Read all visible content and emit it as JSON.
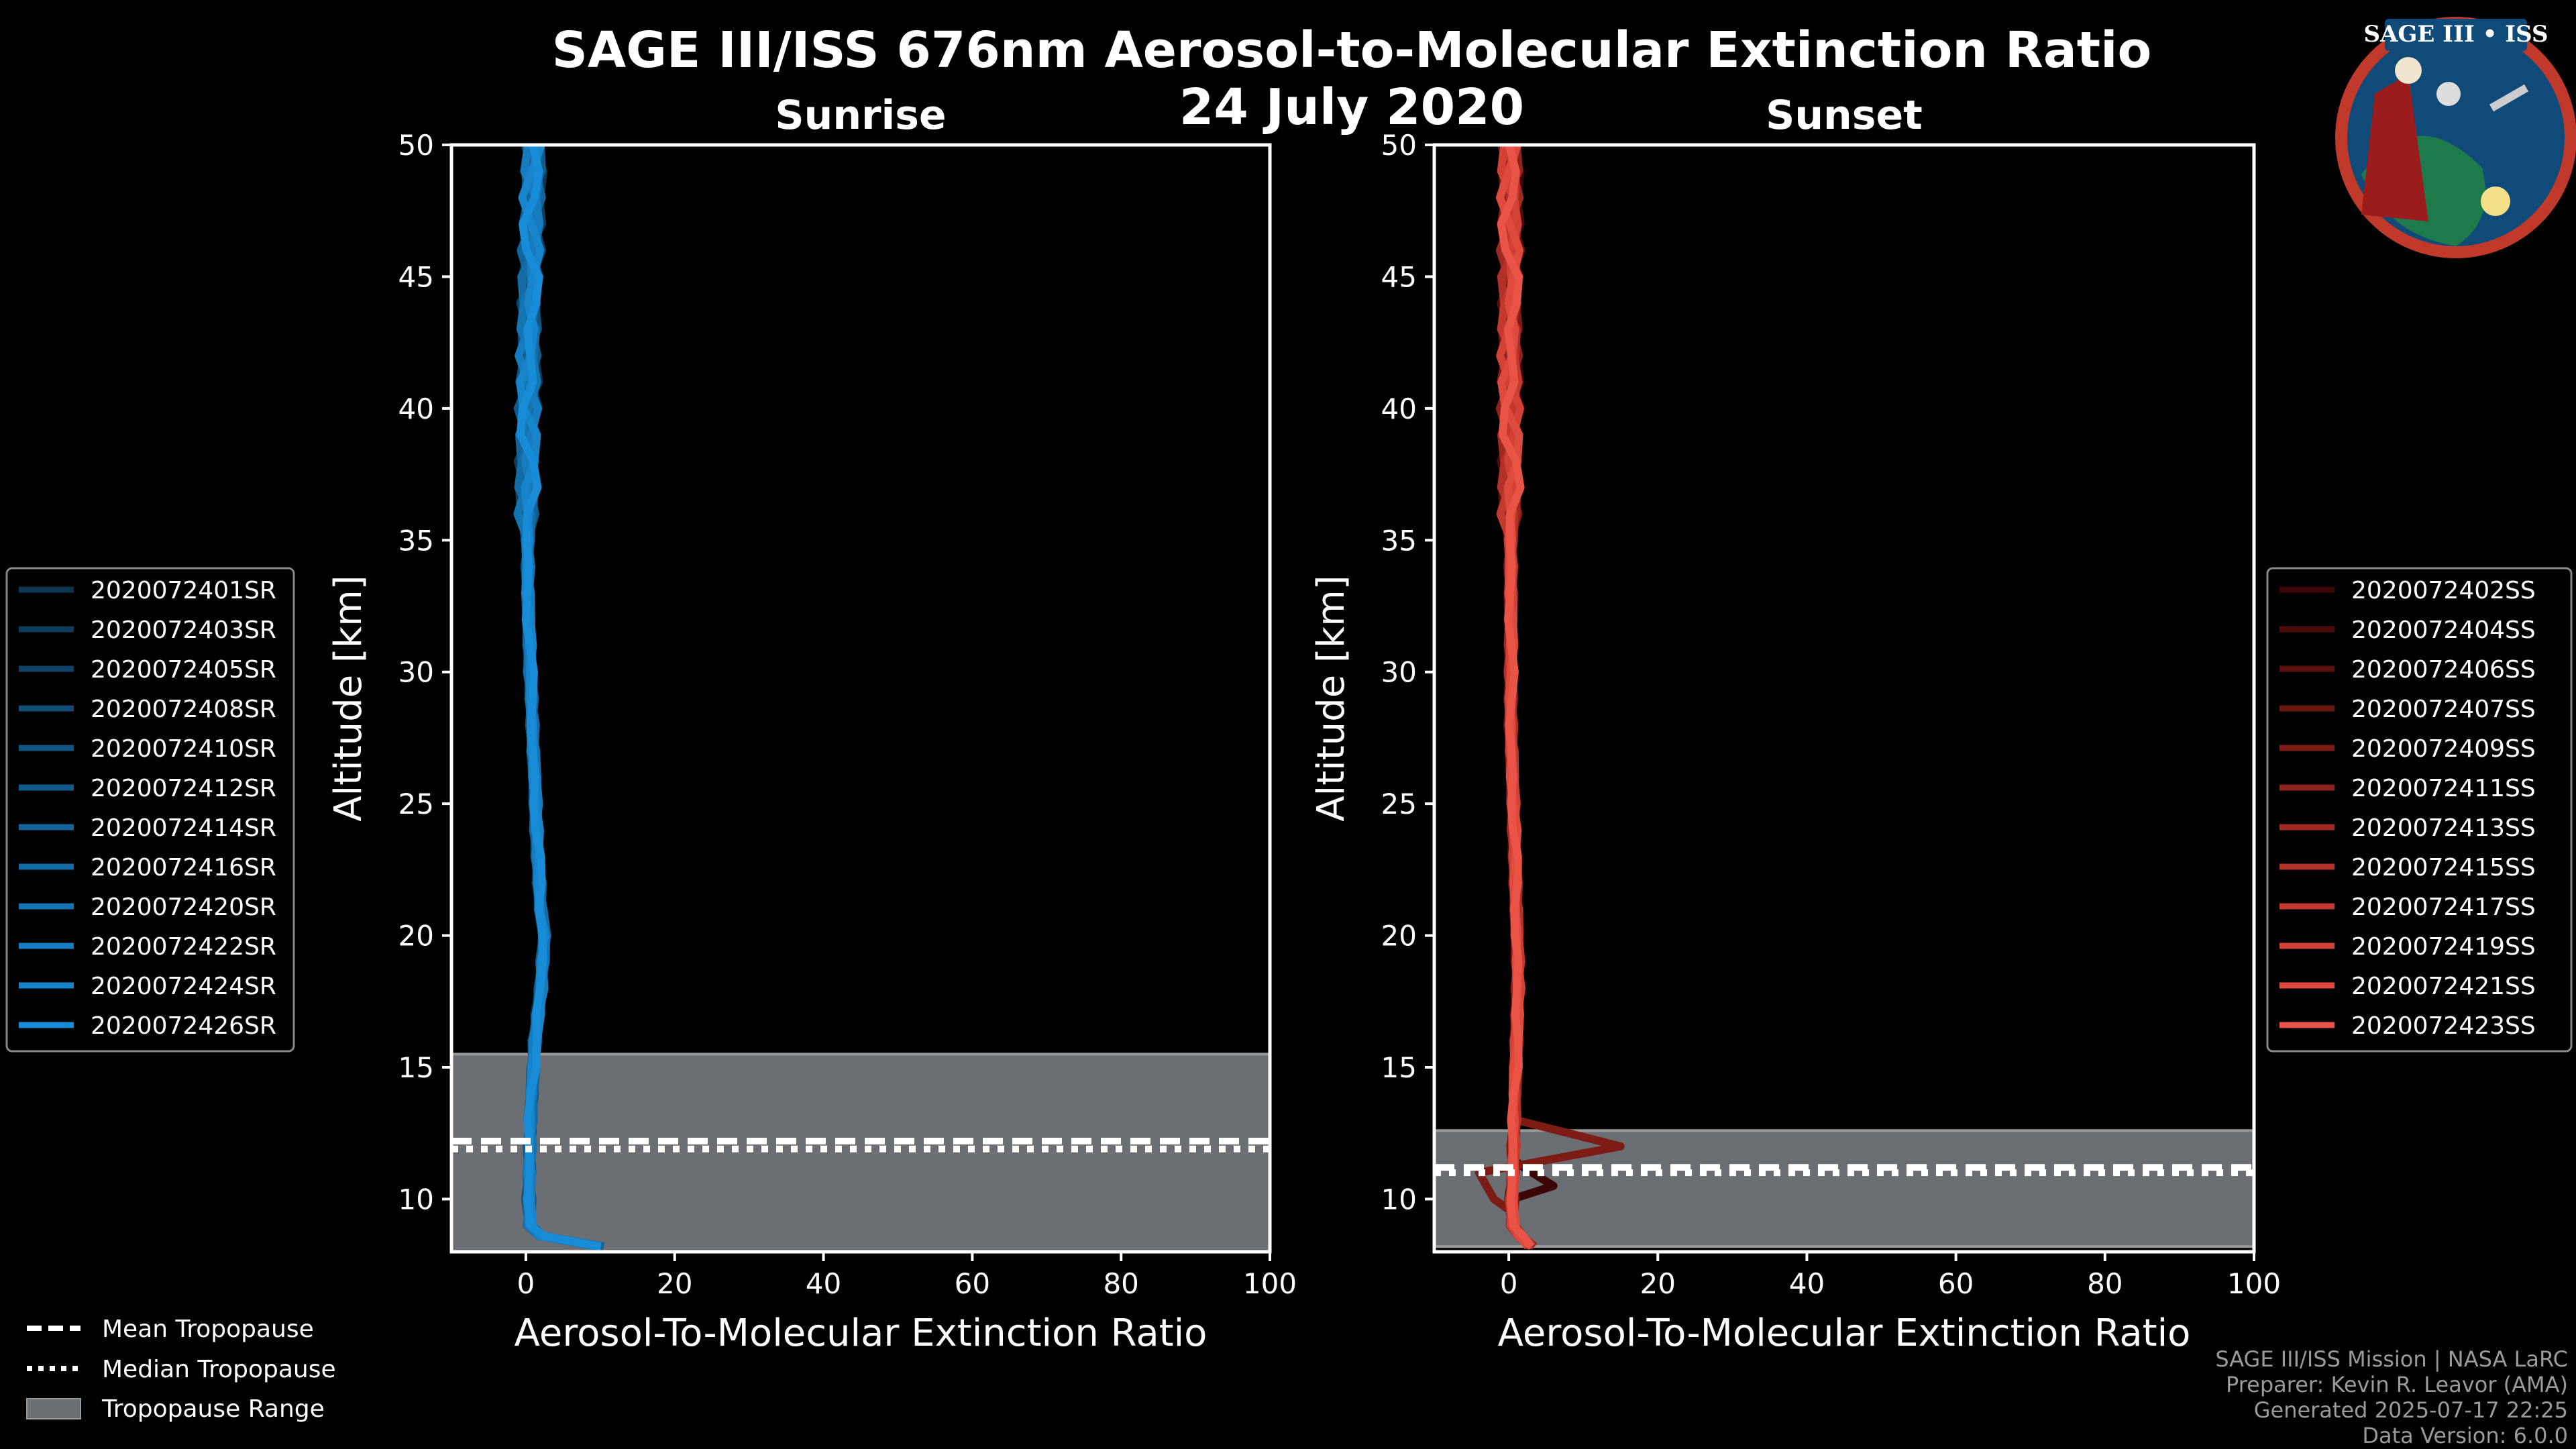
{
  "title": "SAGE III/ISS 676nm Aerosol-to-Molecular Extinction Ratio",
  "subtitle": "24 July 2020",
  "logo_text": "SAGE III • ISS",
  "chart_data": [
    {
      "type": "line",
      "title": "Sunrise",
      "xlabel": "Aerosol-To-Molecular Extinction Ratio",
      "ylabel": "Altitude [km]",
      "xlim": [
        -10,
        100
      ],
      "ylim": [
        8,
        50
      ],
      "xticks": [
        "0",
        "20",
        "40",
        "60",
        "80",
        "100"
      ],
      "yticks": [
        "10",
        "15",
        "20",
        "25",
        "30",
        "35",
        "40",
        "45",
        "50"
      ],
      "xtick_values": [
        0,
        20,
        40,
        60,
        80,
        100
      ],
      "ytick_values": [
        10,
        15,
        20,
        25,
        30,
        35,
        40,
        45,
        50
      ],
      "tropopause": {
        "min": 8,
        "max": 15.5,
        "mean": 12.2,
        "median": 11.9
      },
      "altitude": [
        8.2,
        8.6,
        9,
        10,
        11,
        12,
        13,
        14,
        15,
        16,
        17,
        18,
        19,
        20,
        21,
        22,
        23,
        24,
        25,
        26,
        27,
        28,
        29,
        30,
        31,
        32,
        33,
        34,
        35,
        36,
        37,
        38,
        39,
        40,
        41,
        42,
        43,
        44,
        45,
        46,
        47,
        48,
        49,
        50
      ],
      "base_profile": [
        10,
        2,
        0.5,
        0.4,
        0.4,
        0.5,
        0.6,
        0.8,
        1.0,
        1.2,
        1.6,
        2.0,
        2.2,
        2.5,
        2.0,
        1.8,
        1.6,
        1.4,
        1.3,
        1.2,
        1.0,
        0.9,
        0.8,
        0.6,
        0.5,
        0.4,
        0.3,
        0.3,
        0.3,
        0.3,
        0.3,
        0.3,
        0.4,
        0.4,
        0.5,
        0.5,
        0.6,
        0.6,
        0.7,
        0.8,
        0.9,
        1.0,
        1.1,
        1.2
      ],
      "legend_position": "left",
      "series": [
        {
          "name": "2020072401SR",
          "color": "#0d3550"
        },
        {
          "name": "2020072403SR",
          "color": "#0e3c5c"
        },
        {
          "name": "2020072405SR",
          "color": "#0f4468"
        },
        {
          "name": "2020072408SR",
          "color": "#104c75"
        },
        {
          "name": "2020072410SR",
          "color": "#115481"
        },
        {
          "name": "2020072412SR",
          "color": "#125c8d"
        },
        {
          "name": "2020072414SR",
          "color": "#13649a"
        },
        {
          "name": "2020072416SR",
          "color": "#146ca6"
        },
        {
          "name": "2020072420SR",
          "color": "#1574b2"
        },
        {
          "name": "2020072422SR",
          "color": "#167cbf"
        },
        {
          "name": "2020072424SR",
          "color": "#1784cb"
        },
        {
          "name": "2020072426SR",
          "color": "#188cd7"
        }
      ]
    },
    {
      "type": "line",
      "title": "Sunset",
      "xlabel": "Aerosol-To-Molecular Extinction Ratio",
      "ylabel": "Altitude [km]",
      "xlim": [
        -10,
        100
      ],
      "ylim": [
        8,
        50
      ],
      "xticks": [
        "0",
        "20",
        "40",
        "60",
        "80",
        "100"
      ],
      "yticks": [
        "10",
        "15",
        "20",
        "25",
        "30",
        "35",
        "40",
        "45",
        "50"
      ],
      "xtick_values": [
        0,
        20,
        40,
        60,
        80,
        100
      ],
      "ytick_values": [
        10,
        15,
        20,
        25,
        30,
        35,
        40,
        45,
        50
      ],
      "tropopause": {
        "min": 8.2,
        "max": 12.6,
        "mean": 11.2,
        "median": 11.0
      },
      "altitude": [
        8.2,
        8.6,
        9,
        10,
        11,
        12,
        13,
        14,
        15,
        16,
        17,
        18,
        19,
        20,
        21,
        22,
        23,
        24,
        25,
        26,
        27,
        28,
        29,
        30,
        31,
        32,
        33,
        34,
        35,
        36,
        37,
        38,
        39,
        40,
        41,
        42,
        43,
        44,
        45,
        46,
        47,
        48,
        49,
        50
      ],
      "base_profile": [
        3,
        1.5,
        0.5,
        0.4,
        0.5,
        0.6,
        0.7,
        0.8,
        0.9,
        1.0,
        1.1,
        1.2,
        1.2,
        1.1,
        1.0,
        0.9,
        0.8,
        0.7,
        0.6,
        0.5,
        0.4,
        0.3,
        0.3,
        0.3,
        0.3,
        0.3,
        0.3,
        0.3,
        0.3,
        0.3,
        0.3,
        0.3,
        0.3,
        0.3,
        0.3,
        0.3,
        0.3,
        0.3,
        0.3,
        0.3,
        0.3,
        0.3,
        0.3,
        0.3
      ],
      "excursions": [
        {
          "series": "2020072409SS",
          "altitude": [
            10,
            11,
            12,
            12.5,
            13
          ],
          "values": [
            -2,
            -4,
            15,
            8,
            1
          ]
        },
        {
          "series": "2020072402SS",
          "altitude": [
            10.5,
            11.2
          ],
          "values": [
            6,
            2
          ]
        }
      ],
      "legend_position": "right",
      "series": [
        {
          "name": "2020072402SS",
          "color": "#3a0606"
        },
        {
          "name": "2020072404SS",
          "color": "#4a0b0a"
        },
        {
          "name": "2020072406SS",
          "color": "#5b100e"
        },
        {
          "name": "2020072407SS",
          "color": "#6c1612"
        },
        {
          "name": "2020072409SS",
          "color": "#7d1c17"
        },
        {
          "name": "2020072411SS",
          "color": "#8e221c"
        },
        {
          "name": "2020072413SS",
          "color": "#a02a22"
        },
        {
          "name": "2020072415SS",
          "color": "#b23128"
        },
        {
          "name": "2020072417SS",
          "color": "#c3392f"
        },
        {
          "name": "2020072419SS",
          "color": "#d24136"
        },
        {
          "name": "2020072421SS",
          "color": "#df4a3e"
        },
        {
          "name": "2020072423SS",
          "color": "#ea5446"
        }
      ]
    }
  ],
  "bottom_legend": {
    "mean": "Mean Tropopause",
    "median": "Median Tropopause",
    "range": "Tropopause Range"
  },
  "footer": {
    "line1": "SAGE III/ISS Mission | NASA LaRC",
    "line2": "Preparer: Kevin R. Leavor (AMA)",
    "line3": "Generated 2025-07-17 22:25",
    "line4": "Data Version: 6.0.0"
  }
}
